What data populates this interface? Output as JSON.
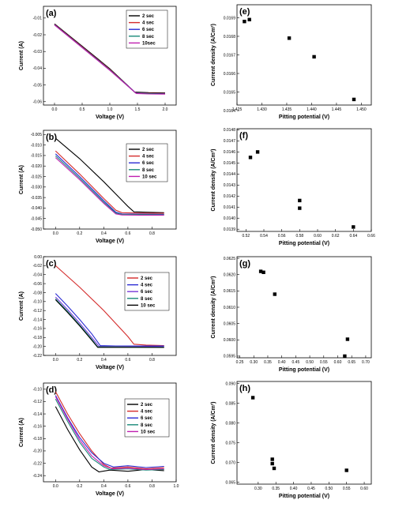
{
  "colors": {
    "black": "#000000",
    "red": "#d42b2b",
    "blue": "#2b2bd4",
    "teal": "#1a8a7a",
    "magenta": "#c020b0",
    "violet": "#7a3ad8"
  },
  "chart_data": [
    {
      "type": "line",
      "label": "(a)",
      "xlabel": "Voltage (V)",
      "ylabel": "Current (A)",
      "xlim": [
        -0.2,
        2.2
      ],
      "ylim": [
        -0.062,
        -0.003
      ],
      "xticks": [
        "0.0",
        "0.5",
        "1.0",
        "1.5",
        "2.0"
      ],
      "xtickvals": [
        0,
        0.5,
        1.0,
        1.5,
        2.0
      ],
      "yticks": [
        "-0.01",
        "-0.02",
        "-0.03",
        "-0.04",
        "-0.05",
        "-0.06"
      ],
      "ytickvals": [
        -0.01,
        -0.02,
        -0.03,
        -0.04,
        -0.05,
        -0.06
      ],
      "legend": "top-right",
      "series": [
        {
          "name": "2 sec",
          "color": "#000000",
          "x": [
            0.0,
            0.5,
            1.0,
            1.45,
            1.7,
            2.0
          ],
          "y": [
            -0.0135,
            -0.0268,
            -0.0403,
            -0.0542,
            -0.0546,
            -0.0548
          ]
        },
        {
          "name": "4 sec",
          "color": "#d42b2b",
          "x": [
            0.0,
            0.5,
            1.0,
            1.46,
            1.7,
            2.0
          ],
          "y": [
            -0.0138,
            -0.0272,
            -0.0407,
            -0.0546,
            -0.0549,
            -0.0551
          ]
        },
        {
          "name": "6 sec",
          "color": "#2b2bd4",
          "x": [
            0.0,
            0.5,
            1.0,
            1.47,
            1.7,
            2.0
          ],
          "y": [
            -0.014,
            -0.0275,
            -0.041,
            -0.0548,
            -0.0551,
            -0.0553
          ]
        },
        {
          "name": "8 sec",
          "color": "#1a8a7a",
          "x": [
            0.0,
            0.5,
            1.0,
            1.47,
            1.7,
            2.0
          ],
          "y": [
            -0.0141,
            -0.0276,
            -0.0411,
            -0.0549,
            -0.0552,
            -0.0554
          ]
        },
        {
          "name": "10sec",
          "color": "#c020b0",
          "x": [
            0.0,
            0.5,
            1.0,
            1.48,
            1.7,
            2.0
          ],
          "y": [
            -0.0142,
            -0.0277,
            -0.0413,
            -0.0551,
            -0.0554,
            -0.0555
          ]
        }
      ]
    },
    {
      "type": "line",
      "label": "(b)",
      "xlabel": "Voltage (V)",
      "ylabel": "Current (A)",
      "xlim": [
        -0.1,
        1.0
      ],
      "ylim": [
        -0.05,
        -0.003
      ],
      "xticks": [
        "0.0",
        "0.2",
        "0.4",
        "0.6",
        "0.8"
      ],
      "xtickvals": [
        0,
        0.2,
        0.4,
        0.6,
        0.8
      ],
      "yticks": [
        "-0.005",
        "-0.010",
        "-0.015",
        "-0.020",
        "-0.025",
        "-0.030",
        "-0.035",
        "-0.040",
        "-0.045",
        "-0.050"
      ],
      "ytickvals": [
        -0.005,
        -0.01,
        -0.015,
        -0.02,
        -0.025,
        -0.03,
        -0.035,
        -0.04,
        -0.045,
        -0.05
      ],
      "legend": "top-right",
      "series": [
        {
          "name": "2 sec",
          "color": "#000000",
          "x": [
            0.0,
            0.2,
            0.4,
            0.6,
            0.65,
            0.75,
            0.9
          ],
          "y": [
            -0.0068,
            -0.0165,
            -0.0275,
            -0.0392,
            -0.0418,
            -0.042,
            -0.0422
          ]
        },
        {
          "name": "4 sec",
          "color": "#d42b2b",
          "x": [
            0.0,
            0.2,
            0.4,
            0.5,
            0.55,
            0.7,
            0.9
          ],
          "y": [
            -0.0128,
            -0.0238,
            -0.0355,
            -0.041,
            -0.0422,
            -0.0424,
            -0.0425
          ]
        },
        {
          "name": "6 sec",
          "color": "#2b2bd4",
          "x": [
            0.0,
            0.2,
            0.4,
            0.5,
            0.55,
            0.7,
            0.9
          ],
          "y": [
            -0.0142,
            -0.025,
            -0.0365,
            -0.042,
            -0.0428,
            -0.0429,
            -0.043
          ]
        },
        {
          "name": "8 sec",
          "color": "#1a8a7a",
          "x": [
            0.0,
            0.2,
            0.4,
            0.5,
            0.55,
            0.7,
            0.9
          ],
          "y": [
            -0.0152,
            -0.0258,
            -0.0372,
            -0.0424,
            -0.043,
            -0.0431,
            -0.0432
          ]
        },
        {
          "name": "10 sec",
          "color": "#c020b0",
          "x": [
            0.0,
            0.2,
            0.4,
            0.5,
            0.55,
            0.7,
            0.9
          ],
          "y": [
            -0.016,
            -0.0265,
            -0.0378,
            -0.0428,
            -0.0433,
            -0.0434,
            -0.0434
          ]
        }
      ]
    },
    {
      "type": "line",
      "label": "(c)",
      "xlabel": "Voltage (V)",
      "ylabel": "Current (A)",
      "xlim": [
        -0.1,
        1.0
      ],
      "ylim": [
        -0.22,
        0.0
      ],
      "xticks": [
        "0.0",
        "0.2",
        "0.4",
        "0.6",
        "0.8"
      ],
      "xtickvals": [
        0,
        0.2,
        0.4,
        0.6,
        0.8
      ],
      "yticks": [
        "0.00",
        "-0.02",
        "-0.04",
        "-0.06",
        "-0.08",
        "-0.10",
        "-0.12",
        "-0.14",
        "-0.16",
        "-0.18",
        "-0.20",
        "-0.22"
      ],
      "ytickvals": [
        0,
        -0.02,
        -0.04,
        -0.06,
        -0.08,
        -0.1,
        -0.12,
        -0.14,
        -0.16,
        -0.18,
        -0.2,
        -0.22
      ],
      "legend": "right",
      "series": [
        {
          "name": "2 sec",
          "color": "#d42b2b",
          "x": [
            0.0,
            0.2,
            0.4,
            0.6,
            0.65,
            0.75,
            0.9
          ],
          "y": [
            -0.02,
            -0.068,
            -0.12,
            -0.178,
            -0.195,
            -0.197,
            -0.198
          ]
        },
        {
          "name": "4 sec",
          "color": "#2b2bd4",
          "x": [
            0.0,
            0.1,
            0.2,
            0.3,
            0.37,
            0.5,
            0.9
          ],
          "y": [
            -0.082,
            -0.11,
            -0.14,
            -0.172,
            -0.198,
            -0.199,
            -0.199
          ]
        },
        {
          "name": "6 sec",
          "color": "#7a3ad8",
          "x": [
            0.0,
            0.1,
            0.2,
            0.3,
            0.36,
            0.5,
            0.9
          ],
          "y": [
            -0.09,
            -0.118,
            -0.148,
            -0.18,
            -0.2,
            -0.2,
            -0.201
          ]
        },
        {
          "name": "8 sec",
          "color": "#1a8a7a",
          "x": [
            0.0,
            0.1,
            0.2,
            0.3,
            0.35,
            0.5,
            0.9
          ],
          "y": [
            -0.094,
            -0.122,
            -0.152,
            -0.184,
            -0.201,
            -0.201,
            -0.202
          ]
        },
        {
          "name": "10 sec",
          "color": "#000000",
          "x": [
            0.0,
            0.1,
            0.2,
            0.3,
            0.35,
            0.5,
            0.9
          ],
          "y": [
            -0.096,
            -0.124,
            -0.154,
            -0.186,
            -0.202,
            -0.202,
            -0.202
          ]
        }
      ]
    },
    {
      "type": "line",
      "label": "(d)",
      "xlabel": "Voltage (V)",
      "ylabel": "Current (A)",
      "xlim": [
        -0.1,
        1.0
      ],
      "ylim": [
        -0.25,
        -0.09
      ],
      "xticks": [
        "0.0",
        "0.2",
        "0.4",
        "0.6",
        "0.8",
        "1.0"
      ],
      "xtickvals": [
        0,
        0.2,
        0.4,
        0.6,
        0.8,
        1.0
      ],
      "yticks": [
        "-0.10",
        "-0.12",
        "-0.14",
        "-0.16",
        "-0.18",
        "-0.20",
        "-0.22",
        "-0.24"
      ],
      "ytickvals": [
        -0.1,
        -0.12,
        -0.14,
        -0.16,
        -0.18,
        -0.2,
        -0.22,
        -0.24
      ],
      "legend": "right",
      "series": [
        {
          "name": "2 sec",
          "color": "#000000",
          "x": [
            0.0,
            0.1,
            0.2,
            0.3,
            0.36,
            0.45,
            0.6,
            0.75,
            0.9
          ],
          "y": [
            -0.128,
            -0.165,
            -0.198,
            -0.226,
            -0.234,
            -0.231,
            -0.233,
            -0.23,
            -0.232
          ]
        },
        {
          "name": "4 sec",
          "color": "#d42b2b",
          "x": [
            0.0,
            0.1,
            0.2,
            0.3,
            0.4,
            0.46,
            0.6,
            0.75,
            0.9
          ],
          "y": [
            -0.104,
            -0.14,
            -0.172,
            -0.2,
            -0.222,
            -0.228,
            -0.226,
            -0.229,
            -0.227
          ]
        },
        {
          "name": "6 sec",
          "color": "#2b2bd4",
          "x": [
            0.0,
            0.1,
            0.2,
            0.3,
            0.4,
            0.48,
            0.6,
            0.75,
            0.9
          ],
          "y": [
            -0.11,
            -0.146,
            -0.178,
            -0.203,
            -0.22,
            -0.226,
            -0.224,
            -0.227,
            -0.225
          ]
        },
        {
          "name": "8 sec",
          "color": "#1a8a7a",
          "x": [
            0.0,
            0.1,
            0.2,
            0.3,
            0.4,
            0.45,
            0.6,
            0.75,
            0.9
          ],
          "y": [
            -0.116,
            -0.152,
            -0.186,
            -0.212,
            -0.226,
            -0.23,
            -0.229,
            -0.231,
            -0.23
          ]
        },
        {
          "name": "10 sec",
          "color": "#c020b0",
          "x": [
            0.0,
            0.1,
            0.2,
            0.3,
            0.4,
            0.47,
            0.6,
            0.75,
            0.9
          ],
          "y": [
            -0.112,
            -0.148,
            -0.182,
            -0.208,
            -0.224,
            -0.229,
            -0.228,
            -0.23,
            -0.229
          ]
        }
      ]
    },
    {
      "type": "scatter",
      "label": "(e)",
      "xlabel": "Pitting potential (V)",
      "ylabel": "Current density (A/Cm²)",
      "xlim": [
        1.425,
        1.452
      ],
      "ylim": [
        0.01643,
        0.01697
      ],
      "xticks": [
        "1.425",
        "1.430",
        "1.435",
        "1.440",
        "1.445",
        "1.450"
      ],
      "xtickvals": [
        1.425,
        1.43,
        1.435,
        1.44,
        1.445,
        1.45
      ],
      "yticks": [
        "0.0169",
        "0.0168",
        "0.0167",
        "0.0166",
        "0.0165",
        "0.0164"
      ],
      "ytickvals": [
        0.0169,
        0.0168,
        0.0167,
        0.0166,
        0.0165,
        0.0164
      ],
      "x": [
        1.4265,
        1.4275,
        1.4355,
        1.4405,
        1.4485
      ],
      "y": [
        0.01688,
        0.01689,
        0.01679,
        0.01669,
        0.01646
      ]
    },
    {
      "type": "scatter",
      "label": "(f)",
      "xlabel": "Pitting potential (V)",
      "ylabel": "Current density (A/Cm²)",
      "xlim": [
        0.51,
        0.66
      ],
      "ylim": [
        0.01388,
        0.01481
      ],
      "xticks": [
        "0.52",
        "0.54",
        "0.56",
        "0.58",
        "0.60",
        "0.62",
        "0.64",
        "0.66"
      ],
      "xtickvals": [
        0.52,
        0.54,
        0.56,
        0.58,
        0.6,
        0.62,
        0.64,
        0.66
      ],
      "yticks": [
        "0.0148",
        "0.0147",
        "0.0146",
        "0.0145",
        "0.0144",
        "0.0143",
        "0.0142",
        "0.0141",
        "0.0140",
        "0.0139"
      ],
      "ytickvals": [
        0.0148,
        0.0147,
        0.0146,
        0.0145,
        0.0144,
        0.0143,
        0.0142,
        0.0141,
        0.014,
        0.0139
      ],
      "x": [
        0.525,
        0.533,
        0.58,
        0.58,
        0.64
      ],
      "y": [
        0.01455,
        0.0146,
        0.01416,
        0.01409,
        0.01392
      ]
    },
    {
      "type": "scatter",
      "label": "(g)",
      "xlabel": "Pitting potential (V)",
      "ylabel": "Current density (A/Cm²)",
      "xlim": [
        0.24,
        0.72
      ],
      "ylim": [
        0.05945,
        0.06255
      ],
      "xticks": [
        "0.25",
        "0.30",
        "0.35",
        "0.40",
        "0.45",
        "0.50",
        "0.55",
        "0.60",
        "0.65",
        "0.70"
      ],
      "xtickvals": [
        0.25,
        0.3,
        0.35,
        0.4,
        0.45,
        0.5,
        0.55,
        0.6,
        0.65,
        0.7
      ],
      "yticks": [
        "0.0625",
        "0.0620",
        "0.0615",
        "0.0610",
        "0.0605",
        "0.0600",
        "0.0595"
      ],
      "ytickvals": [
        0.0625,
        0.062,
        0.0615,
        0.061,
        0.0605,
        0.06,
        0.0595
      ],
      "x": [
        0.325,
        0.335,
        0.375,
        0.625,
        0.635
      ],
      "y": [
        0.0621,
        0.06207,
        0.0614,
        0.0595,
        0.06002
      ]
    },
    {
      "type": "scatter",
      "label": "(h)",
      "xlabel": "Pitting potential (V)",
      "ylabel": "Current density (A/Cm²)",
      "xlim": [
        0.24,
        0.62
      ],
      "ylim": [
        0.0645,
        0.0905
      ],
      "xticks": [
        "0.30",
        "0.35",
        "0.40",
        "0.45",
        "0.50",
        "0.55",
        "0.60"
      ],
      "xtickvals": [
        0.3,
        0.35,
        0.4,
        0.45,
        0.5,
        0.55,
        0.6
      ],
      "yticks": [
        "0.090",
        "0.085",
        "0.080",
        "0.075",
        "0.070",
        "0.065"
      ],
      "ytickvals": [
        0.09,
        0.085,
        0.08,
        0.075,
        0.07,
        0.065
      ],
      "x": [
        0.285,
        0.34,
        0.34,
        0.345,
        0.55
      ],
      "y": [
        0.0864,
        0.0708,
        0.0697,
        0.0685,
        0.068
      ]
    }
  ]
}
